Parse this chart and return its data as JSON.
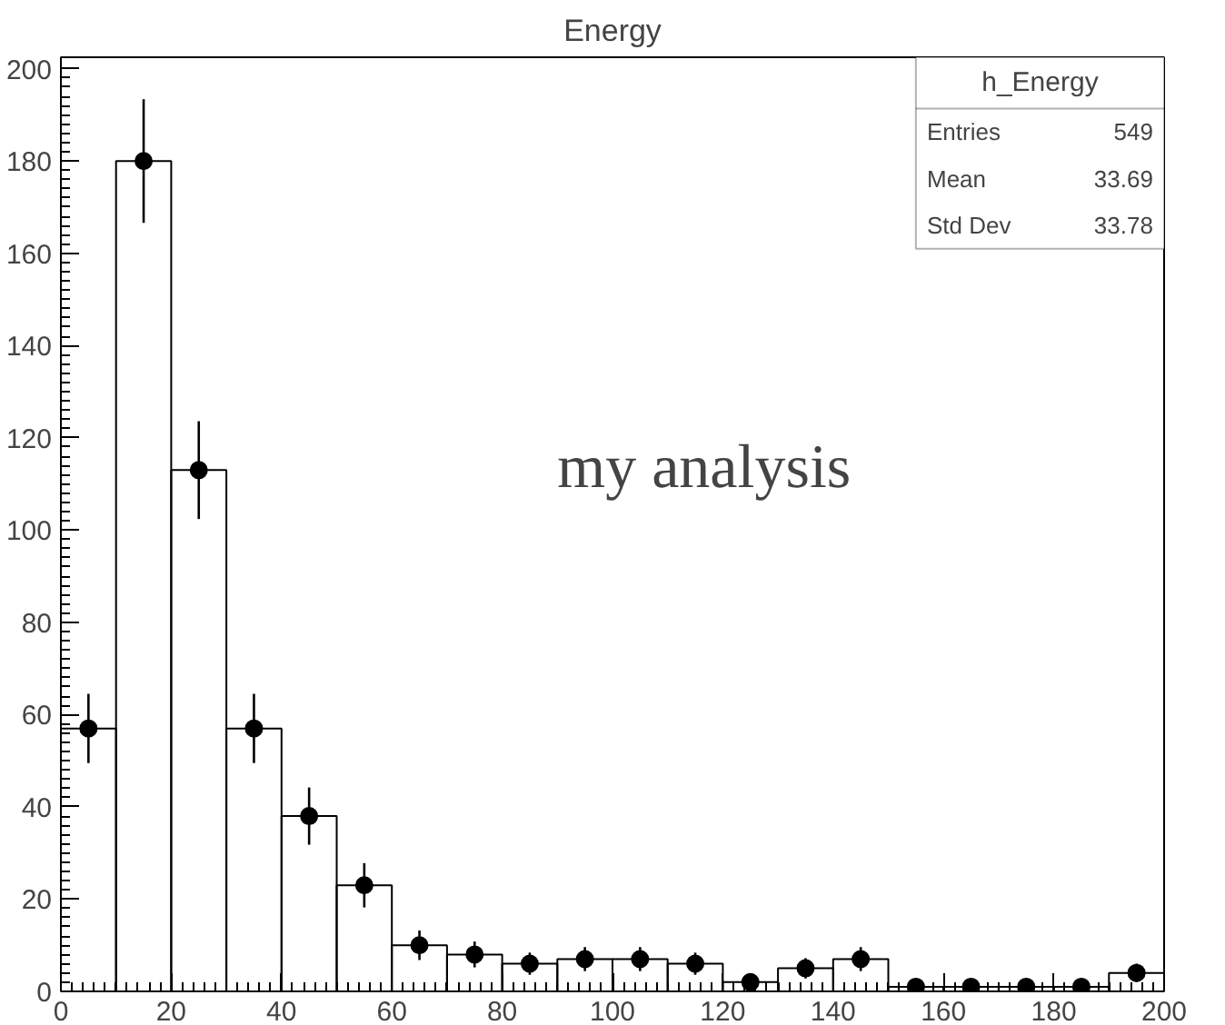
{
  "chart_data": {
    "type": "histogram",
    "title": "Energy",
    "bins": [
      0,
      10,
      20,
      30,
      40,
      50,
      60,
      70,
      80,
      90,
      100,
      110,
      120,
      130,
      140,
      150,
      160,
      170,
      180,
      190,
      200
    ],
    "values": [
      57,
      180,
      113,
      57,
      38,
      23,
      10,
      8,
      6,
      7,
      7,
      6,
      2,
      5,
      7,
      1,
      1,
      1,
      1,
      4
    ],
    "errors": [
      7.5,
      13.4,
      10.6,
      7.5,
      6.2,
      4.8,
      3.2,
      2.8,
      2.4,
      2.6,
      2.6,
      2.4,
      1.4,
      2.2,
      2.6,
      1,
      1,
      1,
      1,
      2
    ],
    "series": [
      {
        "type": "scatter",
        "color": "#000000",
        "x": [
          5,
          15,
          25,
          35,
          45,
          55,
          65,
          75,
          85,
          95,
          105,
          115,
          125,
          135,
          145,
          155,
          165,
          175,
          185,
          195
        ],
        "values": [
          57,
          180,
          113,
          57,
          38,
          23,
          10,
          8,
          6,
          7,
          7,
          6,
          2,
          5,
          7,
          1,
          1,
          1,
          1,
          4
        ]
      }
    ],
    "color": "#000000",
    "marker": "circle",
    "grid": false,
    "xlim": [
      0,
      200
    ],
    "ylim": [
      0,
      202.5
    ],
    "xticks": [
      0,
      20,
      40,
      60,
      80,
      100,
      120,
      140,
      160,
      180,
      200
    ],
    "yticks": [
      0,
      20,
      40,
      60,
      80,
      100,
      120,
      140,
      160,
      180,
      200
    ],
    "annotations": [
      "my analysis",
      "h_Energy",
      "Entries",
      "549",
      "Mean",
      "33.69",
      "Std Dev",
      "33.78"
    ]
  }
}
